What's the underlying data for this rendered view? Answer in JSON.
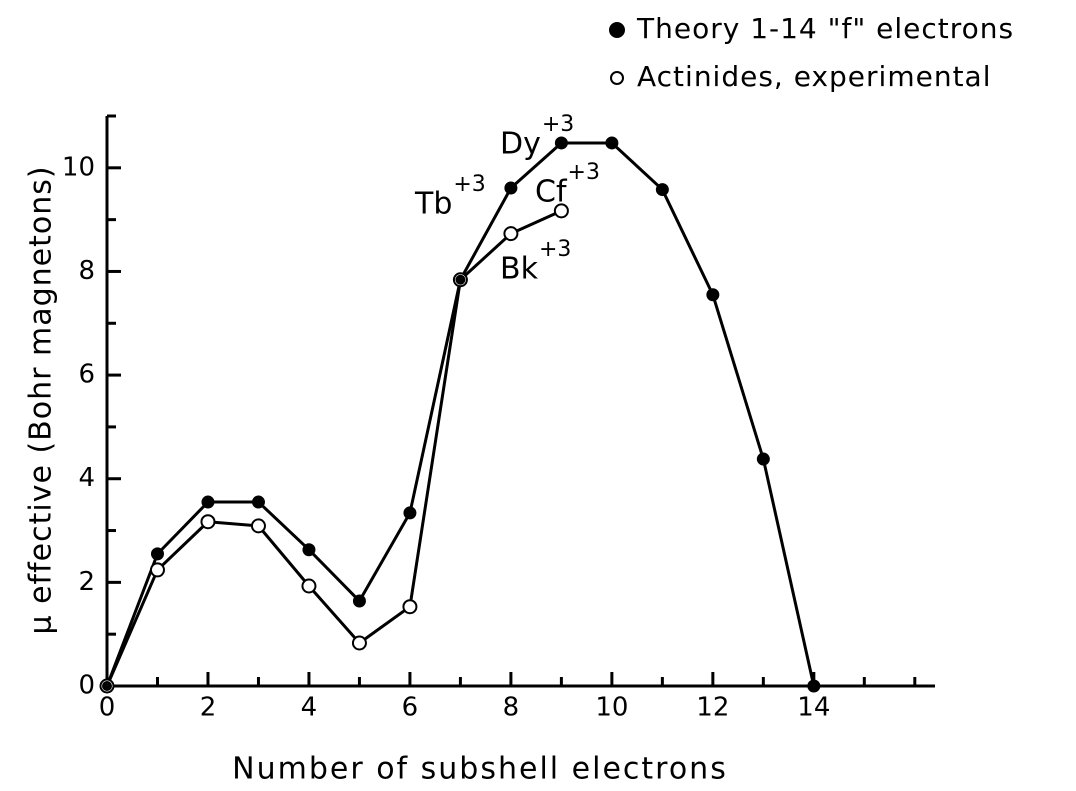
{
  "chart_data": {
    "type": "line",
    "xlabel": "Number of subshell electrons",
    "ylabel": "μ effective (Bohr magnetons)",
    "xlim": [
      0,
      16.4
    ],
    "xticks": [
      0,
      2,
      4,
      6,
      8,
      10,
      12,
      14
    ],
    "xminorticks": [
      1,
      3,
      5,
      7,
      9,
      11,
      13,
      15,
      16
    ],
    "ylim": [
      0,
      11
    ],
    "yticks": [
      0,
      2,
      4,
      6,
      8,
      10
    ],
    "yminorticks": [
      1,
      3,
      5,
      7,
      9,
      11
    ],
    "legend": "top right",
    "series": [
      {
        "name": "Theory 1-14 \"f\" electrons",
        "color": "#000000",
        "marker": "filled",
        "x": [
          0,
          1,
          2,
          3,
          4,
          5,
          6,
          7,
          8,
          9,
          10,
          11,
          12,
          13,
          14
        ],
        "values": [
          0,
          2.55,
          3.55,
          3.55,
          2.63,
          1.64,
          3.34,
          7.84,
          9.61,
          10.48,
          10.48,
          9.58,
          7.55,
          4.38,
          0
        ]
      },
      {
        "name": "Actinides, experimental",
        "color": "#000000",
        "marker": "open",
        "x": [
          0,
          1,
          2,
          3,
          4,
          5,
          6,
          7,
          8,
          9
        ],
        "values": [
          0,
          2.24,
          3.17,
          3.09,
          1.93,
          0.83,
          1.53,
          7.84,
          8.73,
          9.17
        ]
      }
    ],
    "annotations": [
      {
        "text": "Tb",
        "sup": "+3"
      },
      {
        "text": "Dy",
        "sup": "+3"
      },
      {
        "text": "Cf",
        "sup": "+3"
      },
      {
        "text": "Bk",
        "sup": "+3"
      }
    ]
  }
}
